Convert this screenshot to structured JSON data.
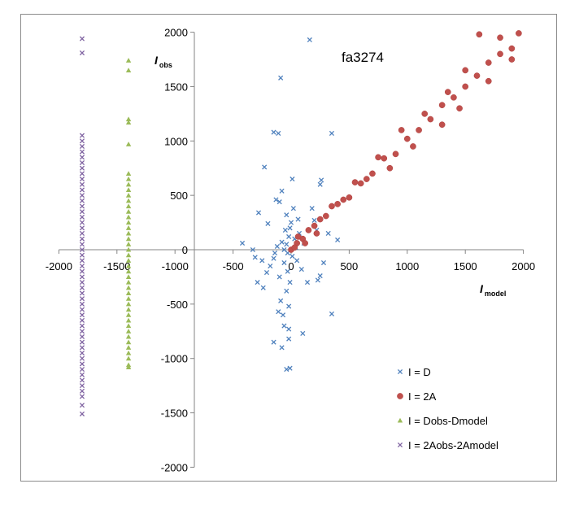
{
  "chart_data": {
    "type": "scatter",
    "annotation": "fa3274",
    "xlabel": {
      "main": "I",
      "sub": "model"
    },
    "ylabel": {
      "main": "I",
      "sub": "obs"
    },
    "xlim": [
      -2000,
      2000
    ],
    "ylim": [
      -2000,
      2000
    ],
    "xticks": [
      "-2000",
      "-1500",
      "-1000",
      "-500",
      "0",
      "500",
      "1000",
      "1500",
      "2000"
    ],
    "yticks": [
      "-2000",
      "-1500",
      "-1000",
      "-500",
      "0",
      "500",
      "1000",
      "1500",
      "2000"
    ],
    "grid": false,
    "legend_position": "bottom-right",
    "series": [
      {
        "name": "I = D",
        "marker": "x",
        "color": "#4f81bd",
        "points": [
          [
            160,
            1930
          ],
          [
            -90,
            1580
          ],
          [
            -150,
            1080
          ],
          [
            -110,
            1070
          ],
          [
            350,
            1070
          ],
          [
            -230,
            760
          ],
          [
            10,
            650
          ],
          [
            260,
            640
          ],
          [
            250,
            600
          ],
          [
            -80,
            540
          ],
          [
            -130,
            460
          ],
          [
            -100,
            440
          ],
          [
            -280,
            340
          ],
          [
            -40,
            320
          ],
          [
            60,
            280
          ],
          [
            -200,
            240
          ],
          [
            -420,
            60
          ],
          [
            -310,
            -70
          ],
          [
            -330,
            0
          ],
          [
            -150,
            -80
          ],
          [
            280,
            -120
          ],
          [
            180,
            380
          ],
          [
            200,
            270
          ],
          [
            220,
            180
          ],
          [
            320,
            150
          ],
          [
            400,
            90
          ],
          [
            -250,
            -100
          ],
          [
            -180,
            -150
          ],
          [
            -210,
            -210
          ],
          [
            -100,
            -250
          ],
          [
            -290,
            -300
          ],
          [
            -240,
            -350
          ],
          [
            -40,
            -380
          ],
          [
            -90,
            -470
          ],
          [
            -20,
            -520
          ],
          [
            -110,
            -570
          ],
          [
            -70,
            -600
          ],
          [
            -60,
            -700
          ],
          [
            -20,
            -730
          ],
          [
            100,
            -770
          ],
          [
            -20,
            -820
          ],
          [
            -150,
            -850
          ],
          [
            -80,
            -900
          ],
          [
            -10,
            -1090
          ],
          [
            -40,
            -1100
          ],
          [
            230,
            -280
          ],
          [
            250,
            -240
          ],
          [
            140,
            -300
          ],
          [
            350,
            -590
          ],
          [
            -60,
            0
          ],
          [
            -40,
            50
          ],
          [
            -20,
            120
          ],
          [
            -10,
            200
          ],
          [
            0,
            250
          ],
          [
            30,
            100
          ],
          [
            -60,
            -120
          ],
          [
            -30,
            -200
          ],
          [
            10,
            -60
          ],
          [
            40,
            20
          ],
          [
            -80,
            70
          ],
          [
            -120,
            30
          ],
          [
            -30,
            -30
          ],
          [
            50,
            -100
          ],
          [
            -50,
            180
          ],
          [
            20,
            380
          ],
          [
            90,
            -180
          ],
          [
            -140,
            -30
          ],
          [
            70,
            150
          ],
          [
            -10,
            -300
          ],
          [
            110,
            60
          ]
        ]
      },
      {
        "name": "I = 2A",
        "marker": "circle",
        "color": "#c0504d",
        "points": [
          [
            0,
            0
          ],
          [
            100,
            100
          ],
          [
            200,
            220
          ],
          [
            300,
            310
          ],
          [
            400,
            420
          ],
          [
            500,
            480
          ],
          [
            600,
            610
          ],
          [
            700,
            700
          ],
          [
            800,
            840
          ],
          [
            900,
            880
          ],
          [
            1000,
            1020
          ],
          [
            1100,
            1100
          ],
          [
            1200,
            1200
          ],
          [
            1300,
            1330
          ],
          [
            1400,
            1400
          ],
          [
            1500,
            1500
          ],
          [
            1600,
            1600
          ],
          [
            1700,
            1720
          ],
          [
            1800,
            1800
          ],
          [
            1900,
            1850
          ],
          [
            1960,
            1990
          ],
          [
            1620,
            1980
          ],
          [
            1900,
            1750
          ],
          [
            1500,
            1650
          ],
          [
            1300,
            1150
          ],
          [
            1050,
            950
          ],
          [
            850,
            750
          ],
          [
            650,
            650
          ],
          [
            450,
            460
          ],
          [
            250,
            280
          ],
          [
            150,
            180
          ],
          [
            50,
            60
          ],
          [
            750,
            850
          ],
          [
            950,
            1100
          ],
          [
            1150,
            1250
          ],
          [
            1350,
            1450
          ],
          [
            1450,
            1300
          ],
          [
            1700,
            1550
          ],
          [
            1800,
            1950
          ],
          [
            550,
            620
          ],
          [
            350,
            400
          ],
          [
            120,
            60
          ],
          [
            220,
            150
          ],
          [
            60,
            120
          ],
          [
            30,
            20
          ]
        ]
      },
      {
        "name": "I = Dobs-Dmodel",
        "marker": "triangle",
        "color": "#9bbb59",
        "points": [
          [
            -1400,
            1740
          ],
          [
            -1400,
            1650
          ],
          [
            -1400,
            1200
          ],
          [
            -1400,
            1170
          ],
          [
            -1400,
            970
          ],
          [
            -1400,
            700
          ],
          [
            -1400,
            650
          ],
          [
            -1400,
            600
          ],
          [
            -1400,
            550
          ],
          [
            -1400,
            500
          ],
          [
            -1400,
            450
          ],
          [
            -1400,
            400
          ],
          [
            -1400,
            350
          ],
          [
            -1400,
            300
          ],
          [
            -1400,
            250
          ],
          [
            -1400,
            200
          ],
          [
            -1400,
            150
          ],
          [
            -1400,
            100
          ],
          [
            -1400,
            50
          ],
          [
            -1400,
            0
          ],
          [
            -1400,
            -50
          ],
          [
            -1400,
            -100
          ],
          [
            -1400,
            -150
          ],
          [
            -1400,
            -200
          ],
          [
            -1400,
            -250
          ],
          [
            -1400,
            -300
          ],
          [
            -1400,
            -350
          ],
          [
            -1400,
            -400
          ],
          [
            -1400,
            -450
          ],
          [
            -1400,
            -500
          ],
          [
            -1400,
            -550
          ],
          [
            -1400,
            -600
          ],
          [
            -1400,
            -650
          ],
          [
            -1400,
            -700
          ],
          [
            -1400,
            -750
          ],
          [
            -1400,
            -800
          ],
          [
            -1400,
            -850
          ],
          [
            -1400,
            -900
          ],
          [
            -1400,
            -950
          ],
          [
            -1400,
            -1000
          ],
          [
            -1400,
            -1060
          ],
          [
            -1400,
            -1080
          ]
        ]
      },
      {
        "name": "I = 2Aobs-2Amodel",
        "marker": "x",
        "color": "#8064a2",
        "points": [
          [
            -1800,
            1940
          ],
          [
            -1800,
            1810
          ],
          [
            -1800,
            1050
          ],
          [
            -1800,
            1000
          ],
          [
            -1800,
            950
          ],
          [
            -1800,
            900
          ],
          [
            -1800,
            850
          ],
          [
            -1800,
            800
          ],
          [
            -1800,
            750
          ],
          [
            -1800,
            700
          ],
          [
            -1800,
            650
          ],
          [
            -1800,
            600
          ],
          [
            -1800,
            550
          ],
          [
            -1800,
            500
          ],
          [
            -1800,
            450
          ],
          [
            -1800,
            400
          ],
          [
            -1800,
            350
          ],
          [
            -1800,
            300
          ],
          [
            -1800,
            250
          ],
          [
            -1800,
            200
          ],
          [
            -1800,
            150
          ],
          [
            -1800,
            100
          ],
          [
            -1800,
            50
          ],
          [
            -1800,
            0
          ],
          [
            -1800,
            -50
          ],
          [
            -1800,
            -100
          ],
          [
            -1800,
            -150
          ],
          [
            -1800,
            -200
          ],
          [
            -1800,
            -250
          ],
          [
            -1800,
            -300
          ],
          [
            -1800,
            -350
          ],
          [
            -1800,
            -400
          ],
          [
            -1800,
            -450
          ],
          [
            -1800,
            -500
          ],
          [
            -1800,
            -550
          ],
          [
            -1800,
            -600
          ],
          [
            -1800,
            -650
          ],
          [
            -1800,
            -700
          ],
          [
            -1800,
            -750
          ],
          [
            -1800,
            -800
          ],
          [
            -1800,
            -850
          ],
          [
            -1800,
            -900
          ],
          [
            -1800,
            -950
          ],
          [
            -1800,
            -1000
          ],
          [
            -1800,
            -1050
          ],
          [
            -1800,
            -1100
          ],
          [
            -1800,
            -1150
          ],
          [
            -1800,
            -1200
          ],
          [
            -1800,
            -1250
          ],
          [
            -1800,
            -1300
          ],
          [
            -1800,
            -1350
          ],
          [
            -1800,
            -1430
          ],
          [
            -1800,
            -1510
          ]
        ]
      }
    ]
  }
}
